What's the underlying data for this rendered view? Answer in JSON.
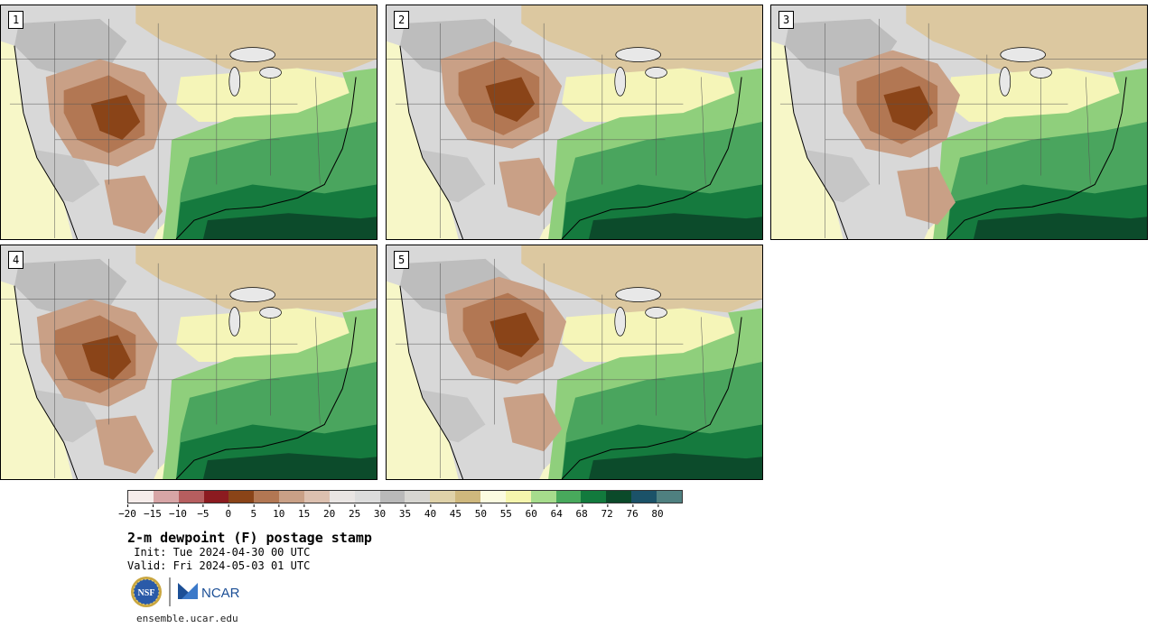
{
  "panels": [
    {
      "label": "1"
    },
    {
      "label": "2"
    },
    {
      "label": "3"
    },
    {
      "label": "4"
    },
    {
      "label": "5"
    }
  ],
  "colorbar": {
    "colors": [
      "#f5ecea",
      "#d7a5a6",
      "#b65e5f",
      "#8c1b20",
      "#8a4418",
      "#b27753",
      "#c9a086",
      "#dcc0af",
      "#e9e5e3",
      "#dcdcdc",
      "#b9b9b9",
      "#d6d5d1",
      "#dfd2a9",
      "#cfb87d",
      "#fbfbe0",
      "#f5f5ad",
      "#a6dc8c",
      "#48a95c",
      "#127a3d",
      "#0b4a2a",
      "#1b5268",
      "#4f8080"
    ],
    "ticks": [
      "−20",
      "−15",
      "−10",
      "−5",
      "0",
      "5",
      "10",
      "15",
      "20",
      "25",
      "30",
      "35",
      "40",
      "45",
      "50",
      "55",
      "60",
      "64",
      "68",
      "72",
      "76",
      "80"
    ]
  },
  "title": "2-m dewpoint (F) postage stamp",
  "init": " Init: Tue 2024-04-30 00 UTC",
  "valid": "Valid: Fri 2024-05-03 01 UTC",
  "logo": {
    "nsf_text": "NSF",
    "ncar_text": "NCAR"
  },
  "url": "ensemble.ucar.edu"
}
